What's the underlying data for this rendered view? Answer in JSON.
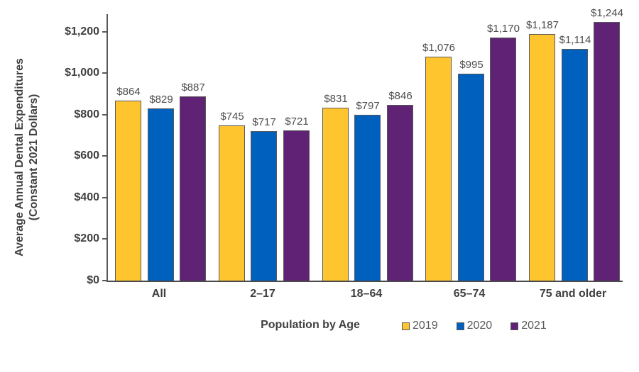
{
  "chart_data": {
    "type": "bar",
    "title": "",
    "categories": [
      "All",
      "2–17",
      "18–64",
      "65–74",
      "75 and older"
    ],
    "series": [
      {
        "name": "2019",
        "color": "#FFC52E",
        "values": [
          864,
          745,
          831,
          1076,
          1187
        ],
        "labels": [
          "$864",
          "$745",
          "$831",
          "$1,076",
          "$1,187"
        ]
      },
      {
        "name": "2020",
        "color": "#0060BD",
        "values": [
          829,
          717,
          797,
          995,
          1114
        ],
        "labels": [
          "$829",
          "$717",
          "$797",
          "$995",
          "$1,114"
        ]
      },
      {
        "name": "2021",
        "color": "#5F2275",
        "values": [
          887,
          721,
          846,
          1170,
          1244
        ],
        "labels": [
          "$887",
          "$721",
          "$846",
          "$1,170",
          "$1,244"
        ]
      }
    ],
    "xlabel": "Population by Age",
    "ylabel_line1": "Average Annual Dental Expenditures",
    "ylabel_line2": "(Constant 2021 Dollars)",
    "ylim": [
      0,
      1292
    ],
    "yticks": {
      "values": [
        0,
        200,
        400,
        600,
        800,
        1000,
        1200
      ],
      "labels": [
        "$0",
        "$200",
        "$400",
        "$600",
        "$800",
        "$1,000",
        "$1,200"
      ]
    },
    "grid": false,
    "legend_position": "bottom-right"
  },
  "colors": {
    "background": "#FFFFFF",
    "axis": "#595959",
    "tick_text": "#404040",
    "bar_border": "#595959",
    "value_text": "#4D4D4D",
    "legend_text": "#595959"
  }
}
